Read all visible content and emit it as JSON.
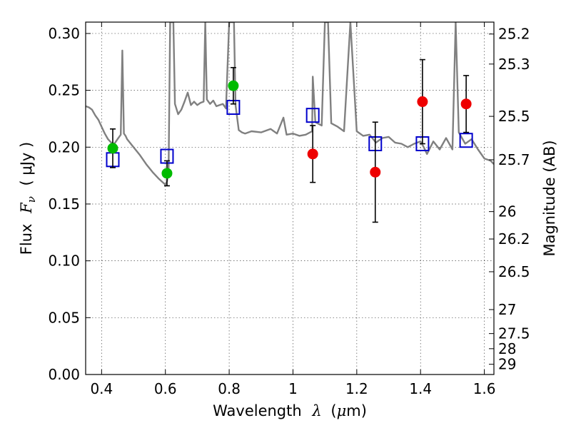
{
  "chart_data": {
    "type": "scatter",
    "xlabel": {
      "prefix": "Wavelength",
      "symbol": "λ",
      "open": "(",
      "unit_mu": "μ",
      "unit_rest": "m)"
    },
    "ylabel": {
      "prefix": "Flux",
      "symbol": "F",
      "sub": "ν",
      "unit": "( μJy )"
    },
    "y2label": "Magnitude (AB)",
    "xlim": [
      0.35,
      1.63
    ],
    "ylim": [
      0.0,
      0.31
    ],
    "grid": true,
    "x_ticks": [
      0.4,
      0.6,
      0.8,
      1.0,
      1.2,
      1.4,
      1.6
    ],
    "x_tick_labels": [
      "0.4",
      "0.6",
      "0.8",
      "1",
      "1.2",
      "1.4",
      "1.6"
    ],
    "y_ticks": [
      0.0,
      0.05,
      0.1,
      0.15,
      0.2,
      0.25,
      0.3
    ],
    "y_tick_labels": [
      "0.00",
      "0.05",
      "0.10",
      "0.15",
      "0.20",
      "0.25",
      "0.30"
    ],
    "mag_ticks": [
      {
        "label": "25.2",
        "flux": 0.2995
      },
      {
        "label": "25.3",
        "flux": 0.2731
      },
      {
        "label": "25.5",
        "flux": 0.2271
      },
      {
        "label": "25.7",
        "flux": 0.1889
      },
      {
        "label": "26",
        "flux": 0.1433
      },
      {
        "label": "26.2",
        "flux": 0.1192
      },
      {
        "label": "26.5",
        "flux": 0.0904
      },
      {
        "label": "27",
        "flux": 0.0571
      },
      {
        "label": "27.5",
        "flux": 0.036
      },
      {
        "label": "28",
        "flux": 0.0227
      },
      {
        "label": "29",
        "flux": 0.009
      }
    ],
    "series": [
      {
        "type": "line",
        "color": "#808080",
        "x": [
          0.35,
          0.36,
          0.37,
          0.38,
          0.39,
          0.4,
          0.41,
          0.42,
          0.43,
          0.44,
          0.45,
          0.46,
          0.465,
          0.47,
          0.475,
          0.48,
          0.5,
          0.52,
          0.54,
          0.56,
          0.58,
          0.6,
          0.605,
          0.61,
          0.615,
          0.62,
          0.625,
          0.63,
          0.64,
          0.65,
          0.66,
          0.67,
          0.68,
          0.69,
          0.7,
          0.71,
          0.72,
          0.725,
          0.73,
          0.74,
          0.75,
          0.76,
          0.77,
          0.78,
          0.79,
          0.8,
          0.805,
          0.81,
          0.815,
          0.82,
          0.83,
          0.84,
          0.85,
          0.87,
          0.9,
          0.93,
          0.95,
          0.97,
          0.98,
          1.0,
          1.02,
          1.04,
          1.06,
          1.062,
          1.07,
          1.09,
          1.1,
          1.11,
          1.12,
          1.14,
          1.16,
          1.18,
          1.2,
          1.22,
          1.24,
          1.26,
          1.28,
          1.3,
          1.32,
          1.34,
          1.36,
          1.38,
          1.4,
          1.41,
          1.42,
          1.44,
          1.46,
          1.48,
          1.5,
          1.51,
          1.52,
          1.54,
          1.56,
          1.58,
          1.6,
          1.62,
          1.63
        ],
        "y": [
          0.236,
          0.235,
          0.233,
          0.228,
          0.224,
          0.218,
          0.212,
          0.207,
          0.204,
          0.203,
          0.207,
          0.211,
          0.285,
          0.212,
          0.21,
          0.207,
          0.2,
          0.193,
          0.185,
          0.178,
          0.172,
          0.167,
          0.17,
          0.18,
          0.31,
          0.31,
          0.31,
          0.238,
          0.229,
          0.233,
          0.24,
          0.248,
          0.237,
          0.24,
          0.237,
          0.239,
          0.24,
          0.31,
          0.242,
          0.238,
          0.241,
          0.236,
          0.237,
          0.238,
          0.234,
          0.31,
          0.31,
          0.31,
          0.31,
          0.237,
          0.215,
          0.213,
          0.212,
          0.214,
          0.213,
          0.216,
          0.212,
          0.226,
          0.211,
          0.212,
          0.21,
          0.211,
          0.214,
          0.262,
          0.222,
          0.219,
          0.31,
          0.31,
          0.221,
          0.218,
          0.214,
          0.31,
          0.214,
          0.21,
          0.211,
          0.204,
          0.208,
          0.209,
          0.204,
          0.203,
          0.2,
          0.203,
          0.205,
          0.2,
          0.194,
          0.205,
          0.198,
          0.208,
          0.198,
          0.31,
          0.213,
          0.203,
          0.207,
          0.198,
          0.19,
          0.188,
          0.185
        ]
      },
      {
        "type": "points",
        "marker": "square-open",
        "color": "#0000cc",
        "x": [
          0.435,
          0.605,
          0.813,
          1.062,
          1.258,
          1.406,
          1.543
        ],
        "y": [
          0.189,
          0.192,
          0.235,
          0.228,
          0.203,
          0.203,
          0.206
        ]
      },
      {
        "type": "points",
        "marker": "circle",
        "color": "#00bb00",
        "x": [
          0.435,
          0.605,
          0.813
        ],
        "y": [
          0.199,
          0.177,
          0.254
        ],
        "yerr": [
          0.017,
          0.011,
          0.016
        ]
      },
      {
        "type": "points",
        "marker": "circle",
        "color": "#ee0000",
        "x": [
          1.062,
          1.258,
          1.406,
          1.543
        ],
        "y": [
          0.194,
          0.178,
          0.24,
          0.238
        ],
        "yerr": [
          0.025,
          0.044,
          0.037,
          0.025
        ]
      }
    ]
  }
}
